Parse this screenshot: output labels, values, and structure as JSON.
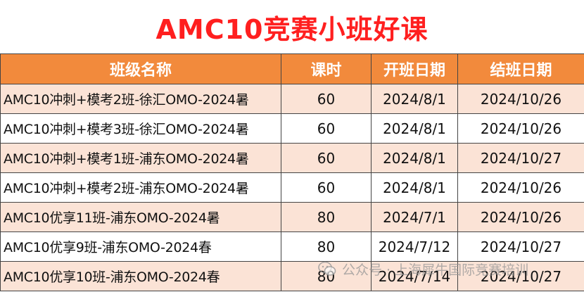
{
  "title": "AMC10竞赛小班好课",
  "columns": [
    "班级名称",
    "课时",
    "开班日期",
    "结班日期"
  ],
  "rows": [
    {
      "name": "AMC10冲刺+模考2班-徐汇OMO-2024暑",
      "hours": "60",
      "start": "2024/8/1",
      "end": "2024/10/26"
    },
    {
      "name": "AMC10冲刺+模考3班-徐汇OMO-2024暑",
      "hours": "60",
      "start": "2024/8/1",
      "end": "2024/10/26"
    },
    {
      "name": "AMC10冲刺+模考1班-浦东OMO-2024暑",
      "hours": "60",
      "start": "2024/8/1",
      "end": "2024/10/27"
    },
    {
      "name": "AMC10冲刺+模考2班-浦东OMO-2024暑",
      "hours": "60",
      "start": "2024/8/1",
      "end": "2024/10/26"
    },
    {
      "name": "AMC10优享11班-浦东OMO-2024暑",
      "hours": "80",
      "start": "2024/7/1",
      "end": "2024/10/26"
    },
    {
      "name": "AMC10优享9班-浦东OMO-2024春",
      "hours": "80",
      "start": "2024/7/12",
      "end": "2024/10/27"
    },
    {
      "name": "AMC10优享10班-浦东OMO-2024春",
      "hours": "80",
      "start": "2024/7/14",
      "end": "2024/10/27"
    }
  ],
  "watermark": "公众号 · 上海犀牛国际竞赛培训",
  "colors": {
    "title": "#ff1f1f",
    "header_bg": "#f28a3c",
    "row_shade": "#fbe3d6",
    "grid": "#444444"
  }
}
